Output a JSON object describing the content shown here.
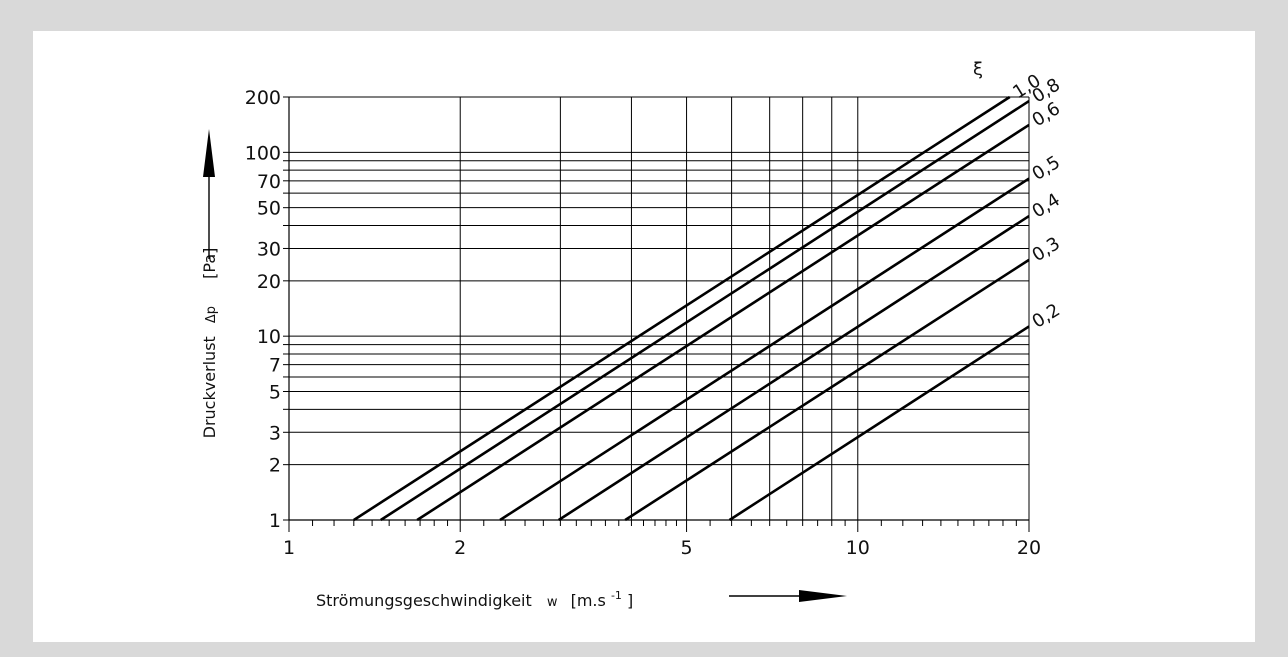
{
  "chart_data": {
    "type": "line",
    "x_scale": "log",
    "y_scale": "log",
    "xlim": [
      1,
      20
    ],
    "ylim": [
      1,
      200
    ],
    "x_ticks": [
      1,
      2,
      5,
      10,
      20
    ],
    "x_tick_labels": [
      "1",
      "2",
      "5",
      "10",
      "20"
    ],
    "y_ticks": [
      1,
      2,
      3,
      5,
      7,
      10,
      20,
      30,
      50,
      70,
      100,
      200
    ],
    "y_tick_labels": [
      "1",
      "2",
      "3",
      "5",
      "7",
      "10",
      "20",
      "30",
      "50",
      "70",
      "100",
      "200"
    ],
    "x_gridlines": [
      2,
      3,
      4,
      5,
      6,
      7,
      8,
      9,
      10
    ],
    "y_gridlines": [
      2,
      3,
      4,
      5,
      6,
      7,
      8,
      9,
      10,
      20,
      30,
      40,
      50,
      60,
      70,
      80,
      90,
      100
    ],
    "grid": true,
    "xlabel": "Strömungsgeschwindigkeit",
    "xlabel_symbol": "w",
    "xlabel_unit": "[m.s",
    "xlabel_unit_exp": "-1",
    "xlabel_unit_close": "]",
    "ylabel": "Druckverlust",
    "ylabel_symbol": "Δp",
    "ylabel_unit": "[Pa]",
    "series_header": "ξ",
    "series": [
      {
        "name": "1,0",
        "x": [
          1.3,
          18.5
        ],
        "y": [
          1,
          200
        ]
      },
      {
        "name": "0,8",
        "x": [
          1.45,
          20
        ],
        "y": [
          1,
          190
        ]
      },
      {
        "name": "0,6",
        "x": [
          1.68,
          20
        ],
        "y": [
          1,
          141
        ]
      },
      {
        "name": "0,5",
        "x": [
          2.35,
          20
        ],
        "y": [
          1,
          72
        ]
      },
      {
        "name": "0,4",
        "x": [
          2.98,
          20
        ],
        "y": [
          1,
          45
        ]
      },
      {
        "name": "0,3",
        "x": [
          3.9,
          20
        ],
        "y": [
          1,
          26
        ]
      },
      {
        "name": "0,2",
        "x": [
          5.95,
          20
        ],
        "y": [
          1,
          11.3
        ]
      }
    ]
  }
}
